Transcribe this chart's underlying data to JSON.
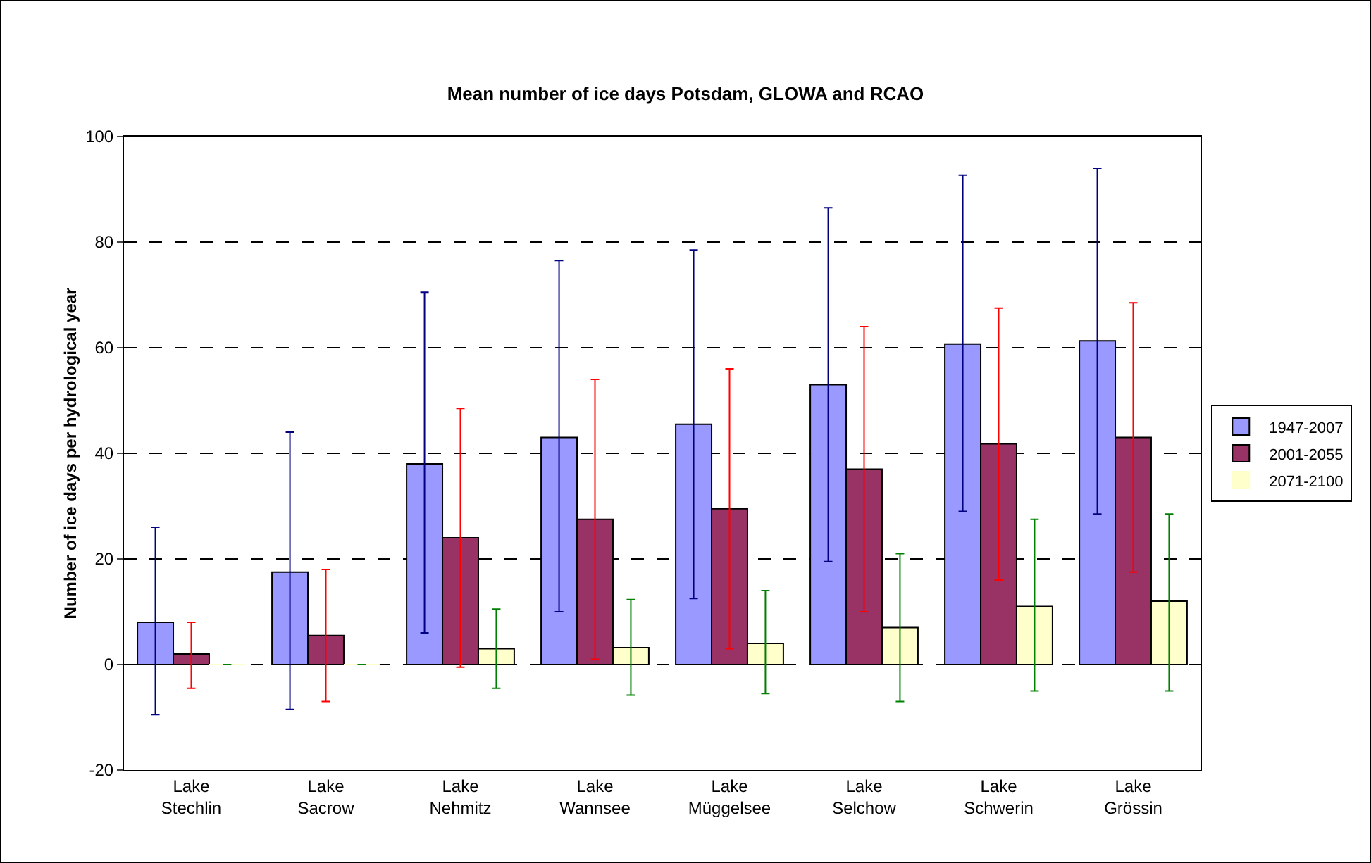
{
  "chart_data": {
    "type": "bar",
    "title": "Mean number of ice days Potsdam, GLOWA and RCAO",
    "ylabel": "Number of ice days per hydrological year",
    "categories": [
      "Lake Stechlin",
      "Lake Sacrow",
      "Lake Nehmitz",
      "Lake Wannsee",
      "Lake Müggelsee",
      "Lake Selchow",
      "Lake Schwerin",
      "Lake Grössin"
    ],
    "series": [
      {
        "name": "1947-2007",
        "color": "#9999ff",
        "values": [
          8,
          17.5,
          38,
          43,
          45.5,
          53,
          60.7,
          61.3
        ],
        "errors": [
          [
            -9.5,
            26
          ],
          [
            -8.5,
            44
          ],
          [
            6,
            70.5
          ],
          [
            10,
            76.5
          ],
          [
            12.5,
            78.5
          ],
          [
            19.5,
            86.5
          ],
          [
            29,
            92.7
          ],
          [
            28.5,
            94
          ]
        ]
      },
      {
        "name": "2001-2055",
        "color": "#993366",
        "values": [
          2,
          5.5,
          24,
          27.5,
          29.5,
          37,
          41.8,
          43
        ],
        "errors": [
          [
            -4.5,
            8
          ],
          [
            -7,
            18
          ],
          [
            -0.5,
            48.5
          ],
          [
            1,
            54
          ],
          [
            3,
            56
          ],
          [
            10,
            64
          ],
          [
            16,
            67.5
          ],
          [
            17.5,
            68.5
          ]
        ]
      },
      {
        "name": "2071-2100",
        "color": "#ffffcc",
        "values": [
          0,
          0,
          3,
          3.2,
          4,
          7,
          11,
          12
        ],
        "errors": [
          null,
          null,
          [
            -4.5,
            10.5
          ],
          [
            -5.8,
            12.3
          ],
          [
            -5.5,
            14
          ],
          [
            -7,
            21
          ],
          [
            -5,
            27.5
          ],
          [
            -5,
            28.5
          ]
        ]
      }
    ],
    "ylim": [
      -20,
      100
    ],
    "yticks": [
      -20,
      0,
      20,
      40,
      60,
      80,
      100
    ],
    "grid": "y",
    "legend": "right"
  }
}
